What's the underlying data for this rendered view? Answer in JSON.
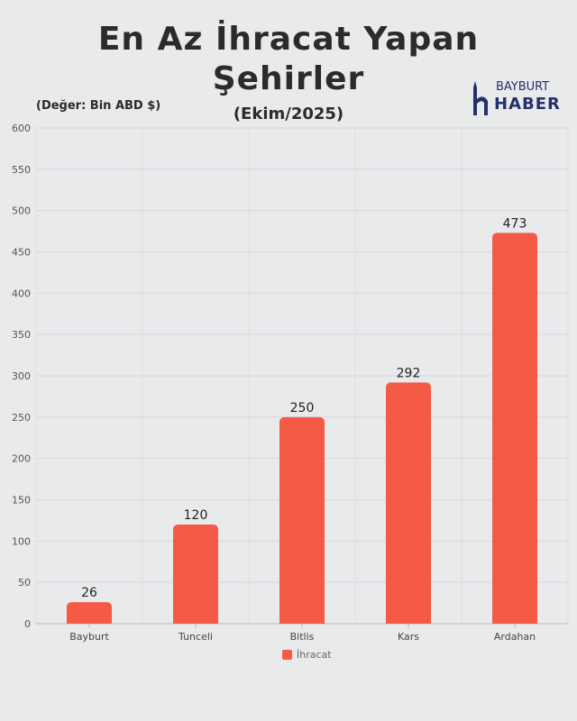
{
  "header": {
    "title_line1": "En Az İhracat Yapan",
    "title_line2": "Şehirler",
    "subtitle": "(Ekim/2025)",
    "unit_note": "(Değer: Bin ABD $)"
  },
  "logo": {
    "line1": "BAYBURT",
    "line2": "HABER",
    "icon": "minaret-icon"
  },
  "chart_data": {
    "type": "bar",
    "categories": [
      "Bayburt",
      "Tunceli",
      "Bitlis",
      "Kars",
      "Ardahan"
    ],
    "series": [
      {
        "name": "İhracat",
        "values": [
          26,
          120,
          250,
          292,
          473
        ]
      }
    ],
    "ylim": [
      0,
      600
    ],
    "yticks": [
      0,
      50,
      100,
      150,
      200,
      250,
      300,
      350,
      400,
      450,
      500,
      550,
      600
    ],
    "grid": true,
    "legend_position": "bottom",
    "bar_color": "#f55a46"
  }
}
